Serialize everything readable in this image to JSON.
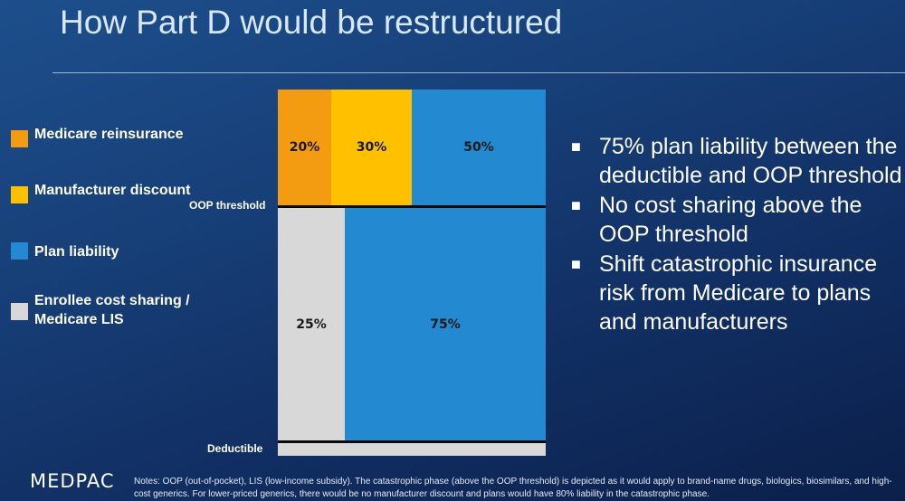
{
  "title": "How Part D would be restructured",
  "colors": {
    "reinsurance": "#f39c12",
    "manufacturer": "#ffc000",
    "plan": "#2389d0",
    "enrollee": "#d8d8d8"
  },
  "legend": [
    {
      "label": "Medicare reinsurance",
      "color": "#f39c12"
    },
    {
      "label": "Manufacturer discount",
      "color": "#ffc000"
    },
    {
      "label": "Plan liability",
      "color": "#2389d0"
    },
    {
      "label": "Enrollee cost sharing / Medicare LIS",
      "color": "#d8d8d8"
    }
  ],
  "chart": {
    "upper": [
      {
        "label": "20%",
        "value": 20,
        "color": "#f39c12"
      },
      {
        "label": "30%",
        "value": 30,
        "color": "#ffc000"
      },
      {
        "label": "50%",
        "value": 50,
        "color": "#2389d0"
      }
    ],
    "lower": [
      {
        "label": "25%",
        "value": 25,
        "color": "#d8d8d8"
      },
      {
        "label": "75%",
        "value": 75,
        "color": "#2389d0"
      }
    ],
    "oop_label": "OOP threshold",
    "deductible_label": "Deductible"
  },
  "bullets": [
    "75% plan liability between the deductible and OOP threshold",
    "No cost sharing above the OOP threshold",
    "Shift catastrophic insurance risk from Medicare to plans and manufacturers"
  ],
  "logo": "MEDPAC",
  "notes": "Notes: OOP (out-of-pocket), LIS (low-income subsidy). The catastrophic phase (above the OOP threshold) is depicted as it would apply to brand-name drugs, biologics, biosimilars, and high-cost generics. For lower-priced generics, there would be no manufacturer discount and plans would have 80% liability in the catastrophic phase."
}
